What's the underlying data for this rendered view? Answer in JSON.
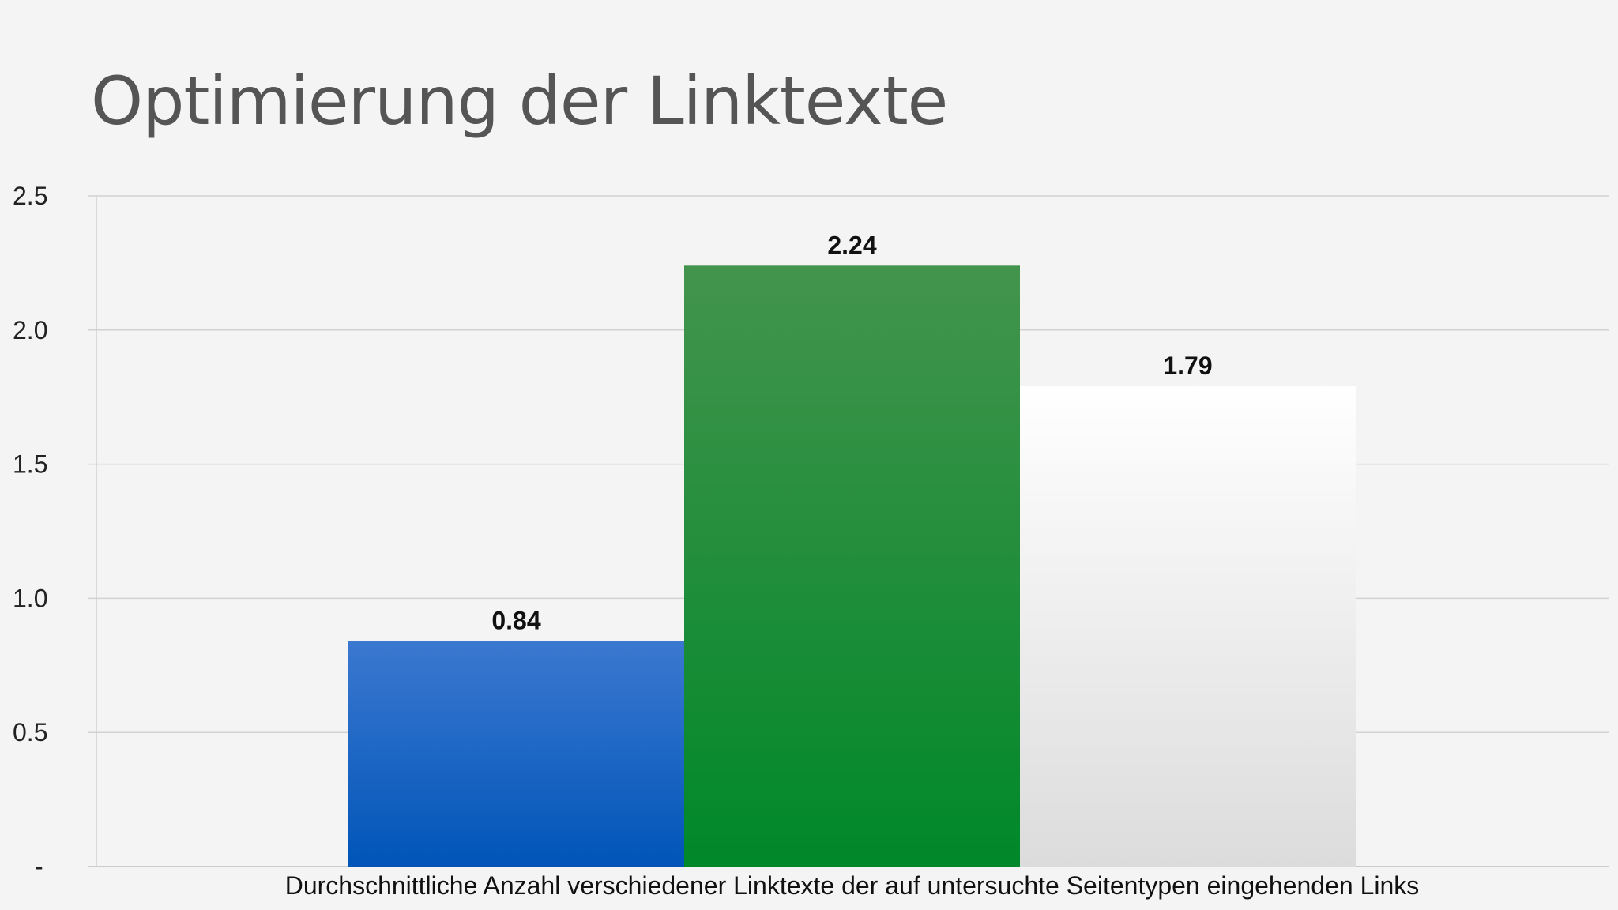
{
  "chart_data": {
    "type": "bar",
    "title": "Optimierung der Linktexte",
    "categories": [
      "Durchschnittliche Anzahl verschiedener Linktexte der auf untersuchte Seitentypen eingehenden Links"
    ],
    "series": [
      {
        "values": [
          0.84
        ],
        "data_label": "0.84",
        "color_top": "#3b78d0",
        "color_bottom": "#0055b8"
      },
      {
        "values": [
          2.24
        ],
        "data_label": "2.24",
        "color_top": "#43944d",
        "color_bottom": "#00882a"
      },
      {
        "values": [
          1.79
        ],
        "data_label": "1.79",
        "color_top": "#ffffff",
        "color_bottom": "#dcdcdc"
      }
    ],
    "yticks": [
      {
        "value": 0,
        "label": "-"
      },
      {
        "value": 0.5,
        "label": "0.5"
      },
      {
        "value": 1.0,
        "label": "1.0"
      },
      {
        "value": 1.5,
        "label": "1.5"
      },
      {
        "value": 2.0,
        "label": "2.0"
      },
      {
        "value": 2.5,
        "label": "2.5"
      }
    ],
    "ylim": [
      0,
      2.5
    ],
    "grid": true,
    "legend": "none",
    "xlabel": "",
    "ylabel": ""
  }
}
